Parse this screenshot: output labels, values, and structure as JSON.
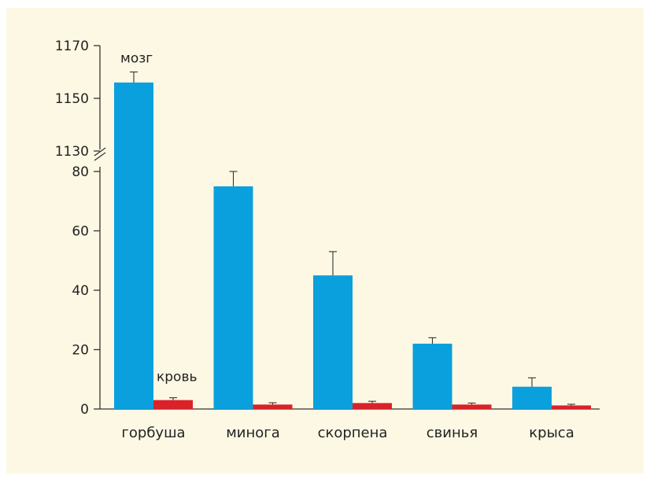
{
  "chart_data": {
    "type": "bar",
    "title": "",
    "xlabel": "",
    "ylabel": "",
    "categories": [
      "горбуша",
      "минога",
      "скорпена",
      "свинья",
      "крыса"
    ],
    "series": [
      {
        "name": "мозг",
        "color": "#0aa0dd",
        "values": [
          1156,
          75,
          45,
          22,
          7.5
        ],
        "errors": [
          4,
          5,
          8,
          2,
          3
        ]
      },
      {
        "name": "кровь",
        "color": "#d9222a",
        "values": [
          3,
          1.5,
          2,
          1.5,
          1.2
        ],
        "errors": [
          0.8,
          0.6,
          0.6,
          0.5,
          0.4
        ]
      }
    ],
    "y_axis": {
      "broken": true,
      "lower_range": [
        0,
        80
      ],
      "upper_range": [
        1130,
        1170
      ],
      "lower_ticks": [
        "0",
        "20",
        "40",
        "60",
        "80"
      ],
      "upper_ticks": [
        "1130",
        "1150",
        "1170"
      ]
    },
    "grid": false
  }
}
